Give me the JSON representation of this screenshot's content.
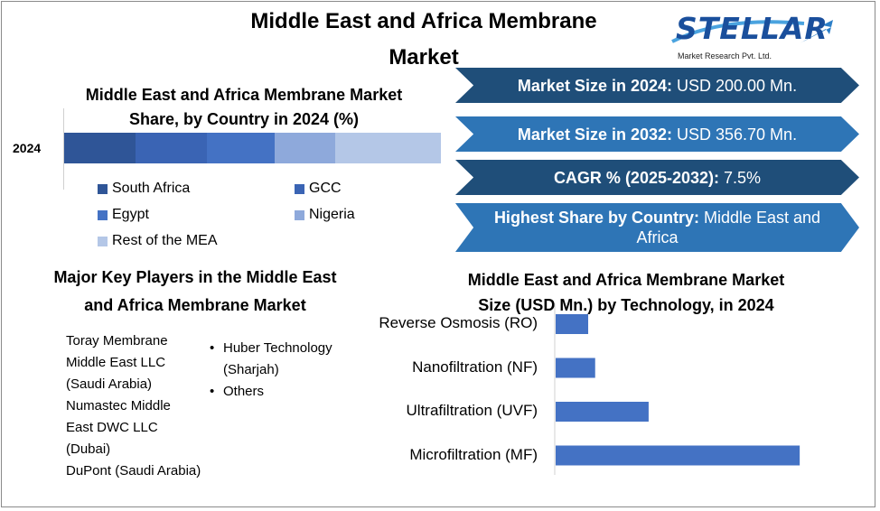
{
  "header": {
    "title_line1": "Middle East and Africa Membrane",
    "title_line2": "Market"
  },
  "logo": {
    "word": "STELLAR",
    "tagline": "Market Research Pvt. Ltd.",
    "color": "#1a4f9c"
  },
  "share_chart": {
    "title_line1": "Middle East and Africa Membrane Market",
    "title_line2": "Share, by Country in 2024 (%)",
    "year": "2024"
  },
  "stats": [
    {
      "label": "Market Size in 2024:",
      "value": " USD 200.00 Mn.",
      "color": "#1f4e79"
    },
    {
      "label": "Market Size in 2032:",
      "value": " USD 356.70 Mn.",
      "color": "#2e75b6"
    },
    {
      "label": "CAGR % (2025-2032):",
      "value": " 7.5%",
      "color": "#1f4e79"
    },
    {
      "label": "Highest Share by Country:",
      "value": " Middle East and Africa",
      "color": "#2e75b6"
    }
  ],
  "players": {
    "title_line1": "Major Key Players in the Middle East",
    "title_line2": "and Africa Membrane Market",
    "col1": [
      "Toray Membrane Middle East LLC (Saudi Arabia)",
      "Numastec Middle East DWC LLC (Dubai)",
      "DuPont (Saudi Arabia)"
    ],
    "col2": [
      "Huber Technology (Sharjah)",
      "Others"
    ]
  },
  "tech_chart": {
    "title_line1": "Middle East and Africa Membrane Market",
    "title_line2": "Size (USD Mn.) by Technology, in 2024"
  },
  "chart_data": [
    {
      "type": "bar",
      "orientation": "horizontal-stacked",
      "title": "Middle East and Africa Membrane Market Share, by Country in 2024 (%)",
      "categories": [
        "2024"
      ],
      "series": [
        {
          "name": "South Africa",
          "values": [
            19
          ],
          "color": "#2f5597"
        },
        {
          "name": "GCC",
          "values": [
            19
          ],
          "color": "#3a64b4"
        },
        {
          "name": "Egypt",
          "values": [
            18
          ],
          "color": "#4472c4"
        },
        {
          "name": "Nigeria",
          "values": [
            16
          ],
          "color": "#8ea9db"
        },
        {
          "name": "Rest of the MEA",
          "values": [
            28
          ],
          "color": "#b4c7e7"
        }
      ],
      "legend": "bottom"
    },
    {
      "type": "bar",
      "orientation": "horizontal",
      "title": "Middle East and Africa Membrane Market Size (USD Mn.) by Technology, in 2024",
      "categories": [
        "Reverse Osmosis (RO)",
        "Nanofiltration (NF)",
        "Ultrafiltration (UVF)",
        "Microfiltration (MF)"
      ],
      "values": [
        14,
        17,
        40,
        105
      ],
      "xlim": [
        0,
        110
      ],
      "color": "#4472c4",
      "grid": false
    }
  ]
}
